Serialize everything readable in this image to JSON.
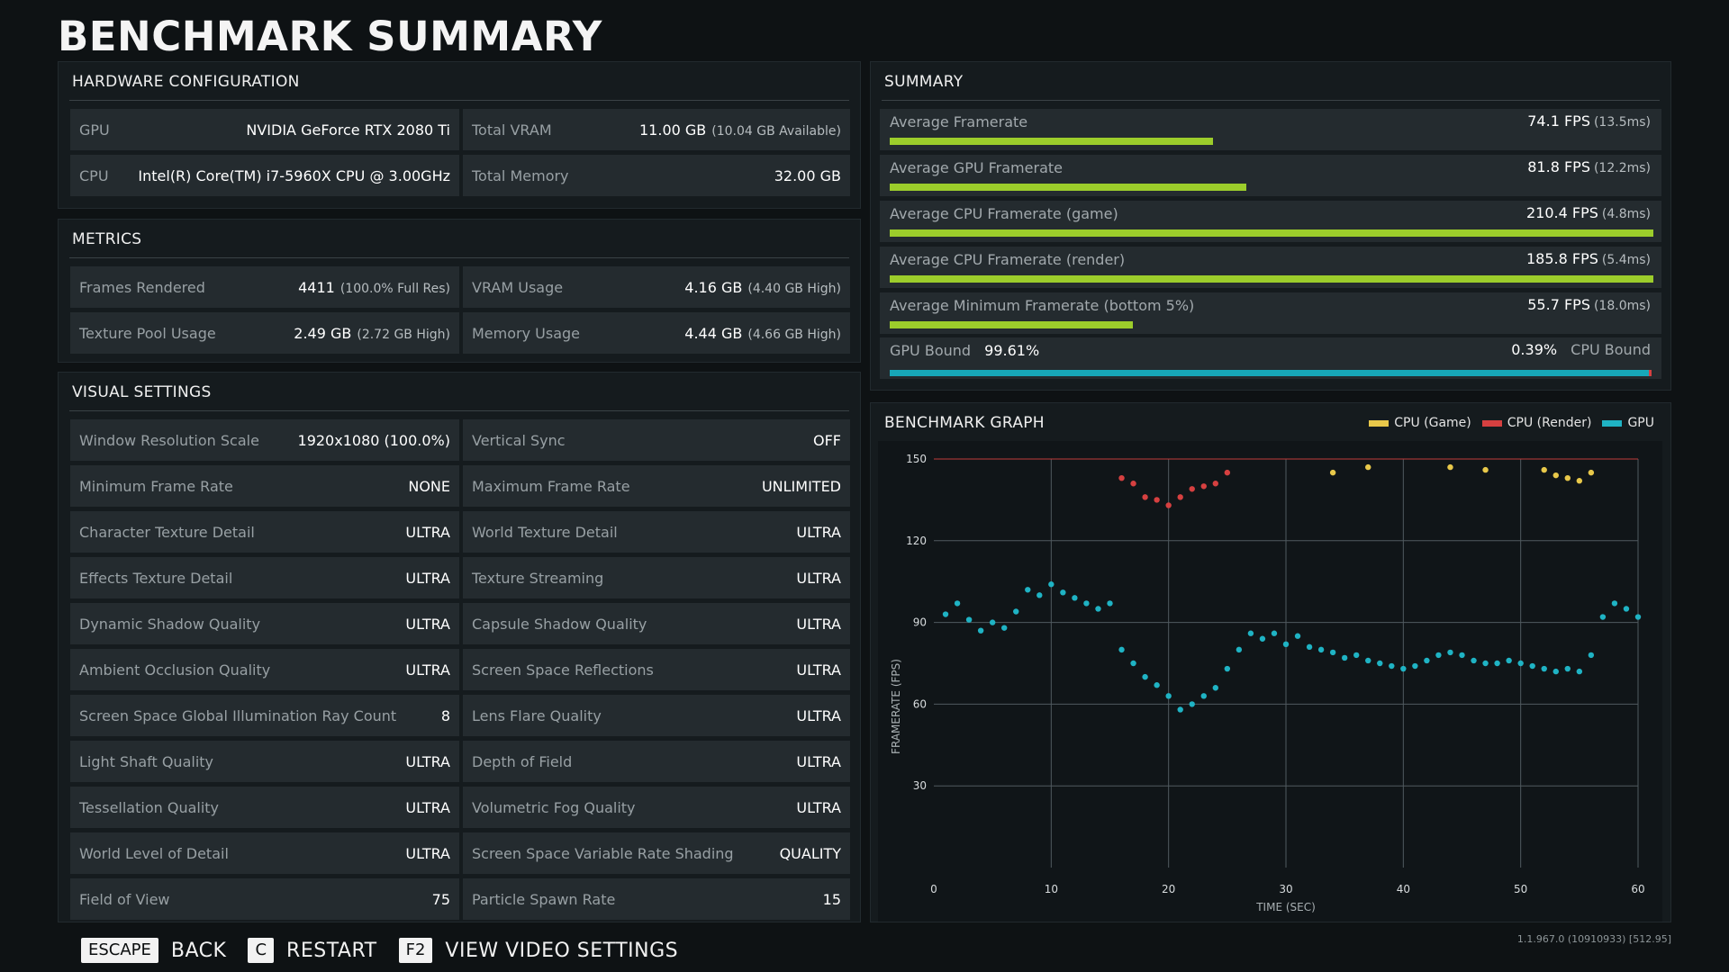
{
  "title": "BENCHMARK SUMMARY",
  "hardware": {
    "title": "HARDWARE CONFIGURATION",
    "items": [
      {
        "label": "GPU",
        "value": "NVIDIA GeForce RTX 2080 Ti",
        "sub": ""
      },
      {
        "label": "Total VRAM",
        "value": "11.00 GB",
        "sub": "(10.04 GB Available)"
      },
      {
        "label": "CPU",
        "value": "Intel(R) Core(TM) i7-5960X CPU @ 3.00GHz",
        "sub": ""
      },
      {
        "label": "Total Memory",
        "value": "32.00 GB",
        "sub": ""
      }
    ]
  },
  "metrics": {
    "title": "METRICS",
    "items": [
      {
        "label": "Frames Rendered",
        "value": "4411",
        "sub": "(100.0% Full Res)"
      },
      {
        "label": "VRAM Usage",
        "value": "4.16 GB",
        "sub": "(4.40 GB High)"
      },
      {
        "label": "Texture Pool Usage",
        "value": "2.49 GB",
        "sub": "(2.72 GB High)"
      },
      {
        "label": "Memory Usage",
        "value": "4.44 GB",
        "sub": "(4.66 GB High)"
      }
    ]
  },
  "visual": {
    "title": "VISUAL SETTINGS",
    "items": [
      {
        "label": "Window Resolution Scale",
        "value": "1920x1080 (100.0%)"
      },
      {
        "label": "Vertical Sync",
        "value": "OFF"
      },
      {
        "label": "Minimum Frame Rate",
        "value": "NONE"
      },
      {
        "label": "Maximum Frame Rate",
        "value": "UNLIMITED"
      },
      {
        "label": "Character Texture Detail",
        "value": "ULTRA"
      },
      {
        "label": "World Texture Detail",
        "value": "ULTRA"
      },
      {
        "label": "Effects Texture Detail",
        "value": "ULTRA"
      },
      {
        "label": "Texture Streaming",
        "value": "ULTRA"
      },
      {
        "label": "Dynamic Shadow Quality",
        "value": "ULTRA"
      },
      {
        "label": "Capsule Shadow Quality",
        "value": "ULTRA"
      },
      {
        "label": "Ambient Occlusion Quality",
        "value": "ULTRA"
      },
      {
        "label": "Screen Space Reflections",
        "value": "ULTRA"
      },
      {
        "label": "Screen Space Global Illumination Ray Count",
        "value": "8"
      },
      {
        "label": "Lens Flare Quality",
        "value": "ULTRA"
      },
      {
        "label": "Light Shaft Quality",
        "value": "ULTRA"
      },
      {
        "label": "Depth of Field",
        "value": "ULTRA"
      },
      {
        "label": "Tessellation Quality",
        "value": "ULTRA"
      },
      {
        "label": "Volumetric Fog Quality",
        "value": "ULTRA"
      },
      {
        "label": "World Level of Detail",
        "value": "ULTRA"
      },
      {
        "label": "Screen Space Variable Rate Shading",
        "value": "QUALITY"
      },
      {
        "label": "Field of View",
        "value": "75"
      },
      {
        "label": "Particle Spawn Rate",
        "value": "15"
      }
    ]
  },
  "summary": {
    "title": "SUMMARY",
    "bar_color": "#9ccd2b",
    "bar_scale_fps": 175,
    "items": [
      {
        "label": "Average Framerate",
        "value": "74.1 FPS",
        "sub": "(13.5ms)",
        "fps": 74.1
      },
      {
        "label": "Average GPU Framerate",
        "value": "81.8 FPS",
        "sub": "(12.2ms)",
        "fps": 81.8
      },
      {
        "label": "Average CPU Framerate (game)",
        "value": "210.4 FPS",
        "sub": "(4.8ms)",
        "fps": 210.4
      },
      {
        "label": "Average CPU Framerate (render)",
        "value": "185.8 FPS",
        "sub": "(5.4ms)",
        "fps": 185.8
      },
      {
        "label": "Average Minimum Framerate (bottom 5%)",
        "value": "55.7 FPS",
        "sub": "(18.0ms)",
        "fps": 55.7
      }
    ],
    "bound": {
      "gpu_label": "GPU Bound",
      "gpu_value": "99.61%",
      "cpu_label": "CPU Bound",
      "cpu_value": "0.39%",
      "gpu_fraction": 0.9961
    }
  },
  "graph": {
    "title": "BENCHMARK GRAPH",
    "legend": [
      {
        "name": "CPU (Game)",
        "color": "#e8c84a"
      },
      {
        "name": "CPU (Render)",
        "color": "#d64040"
      },
      {
        "name": "GPU",
        "color": "#1fb3c4"
      }
    ]
  },
  "chart_data": {
    "type": "scatter",
    "xlabel": "TIME (SEC)",
    "ylabel": "FRAMERATE (FPS)",
    "xlim": [
      0,
      60
    ],
    "ylim": [
      0,
      150
    ],
    "xticks": [
      0,
      10,
      20,
      30,
      40,
      50,
      60
    ],
    "yticks": [
      30,
      60,
      90,
      120,
      150
    ],
    "cap_line": 150,
    "series": [
      {
        "name": "GPU",
        "color": "#1fb3c4",
        "points": [
          [
            1,
            93
          ],
          [
            2,
            97
          ],
          [
            3,
            91
          ],
          [
            4,
            87
          ],
          [
            5,
            90
          ],
          [
            6,
            88
          ],
          [
            7,
            94
          ],
          [
            8,
            102
          ],
          [
            9,
            100
          ],
          [
            10,
            104
          ],
          [
            11,
            101
          ],
          [
            12,
            99
          ],
          [
            13,
            97
          ],
          [
            14,
            95
          ],
          [
            15,
            97
          ],
          [
            16,
            80
          ],
          [
            17,
            75
          ],
          [
            18,
            70
          ],
          [
            19,
            67
          ],
          [
            20,
            63
          ],
          [
            21,
            58
          ],
          [
            22,
            60
          ],
          [
            23,
            63
          ],
          [
            24,
            66
          ],
          [
            25,
            73
          ],
          [
            26,
            80
          ],
          [
            27,
            86
          ],
          [
            28,
            84
          ],
          [
            29,
            86
          ],
          [
            30,
            82
          ],
          [
            31,
            85
          ],
          [
            32,
            81
          ],
          [
            33,
            80
          ],
          [
            34,
            79
          ],
          [
            35,
            77
          ],
          [
            36,
            78
          ],
          [
            37,
            76
          ],
          [
            38,
            75
          ],
          [
            39,
            74
          ],
          [
            40,
            73
          ],
          [
            41,
            74
          ],
          [
            42,
            76
          ],
          [
            43,
            78
          ],
          [
            44,
            79
          ],
          [
            45,
            78
          ],
          [
            46,
            76
          ],
          [
            47,
            75
          ],
          [
            48,
            75
          ],
          [
            49,
            76
          ],
          [
            50,
            75
          ],
          [
            51,
            74
          ],
          [
            52,
            73
          ],
          [
            53,
            72
          ],
          [
            54,
            73
          ],
          [
            55,
            72
          ],
          [
            56,
            78
          ],
          [
            57,
            92
          ],
          [
            58,
            97
          ],
          [
            59,
            95
          ],
          [
            60,
            92
          ]
        ]
      },
      {
        "name": "CPU (Render)",
        "color": "#d64040",
        "points": [
          [
            16,
            143
          ],
          [
            17,
            141
          ],
          [
            18,
            136
          ],
          [
            19,
            135
          ],
          [
            20,
            133
          ],
          [
            21,
            136
          ],
          [
            22,
            139
          ],
          [
            23,
            140
          ],
          [
            24,
            141
          ],
          [
            25,
            145
          ]
        ]
      },
      {
        "name": "CPU (Game)",
        "color": "#e8c84a",
        "points": [
          [
            34,
            145
          ],
          [
            37,
            147
          ],
          [
            44,
            147
          ],
          [
            47,
            146
          ],
          [
            52,
            146
          ],
          [
            53,
            144
          ],
          [
            54,
            143
          ],
          [
            55,
            142
          ],
          [
            56,
            145
          ]
        ]
      }
    ]
  },
  "footer": [
    {
      "key": "ESCAPE",
      "label": "BACK"
    },
    {
      "key": "C",
      "label": "RESTART"
    },
    {
      "key": "F2",
      "label": "VIEW VIDEO SETTINGS"
    }
  ],
  "version": "1.1.967.0 (10910933) [512.95]"
}
